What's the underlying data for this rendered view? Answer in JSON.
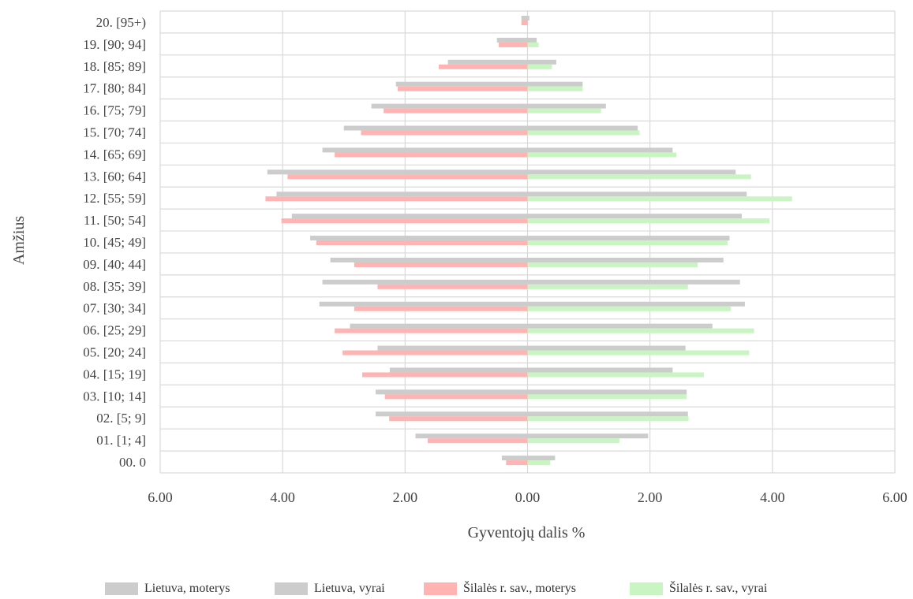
{
  "chart_data": {
    "type": "bar",
    "orientation": "horizontal",
    "xlabel": "Gyventojų dalis %",
    "ylabel": "Amžius",
    "xlim": [
      -6,
      6
    ],
    "xticks": [
      "6.00",
      "4.00",
      "2.00",
      "0.00",
      "2.00",
      "4.00",
      "6.00"
    ],
    "grid": true,
    "legend_position": "bottom",
    "categories": [
      "20. [95+)",
      "19. [90; 94]",
      "18. [85; 89]",
      "17. [80; 84]",
      "16. [75; 79]",
      "15. [70; 74]",
      "14. [65; 69]",
      "13. [60; 64]",
      "12. [55; 59]",
      "11. [50; 54]",
      "10. [45; 49]",
      "09. [40; 44]",
      "08. [35; 39]",
      "07. [30; 34]",
      "06. [25; 29]",
      "05. [20; 24]",
      "04. [15; 19]",
      "03. [10; 14]",
      "02. [5; 9]",
      "01. [1; 4]",
      "00. 0"
    ],
    "series": [
      {
        "name": "Lietuva, moterys",
        "color": "#cccccc",
        "side": "left",
        "values": [
          0.1,
          0.5,
          1.3,
          2.15,
          2.55,
          3.0,
          3.35,
          4.25,
          4.1,
          3.85,
          3.55,
          3.22,
          3.35,
          3.4,
          2.9,
          2.45,
          2.25,
          2.48,
          2.48,
          1.83,
          0.42
        ]
      },
      {
        "name": "Lietuva, vyrai",
        "color": "#cccccc",
        "side": "right",
        "values": [
          0.03,
          0.15,
          0.47,
          0.9,
          1.28,
          1.8,
          2.37,
          3.4,
          3.58,
          3.5,
          3.3,
          3.2,
          3.47,
          3.55,
          3.02,
          2.58,
          2.37,
          2.6,
          2.62,
          1.97,
          0.45
        ]
      },
      {
        "name": "Šilalės r. sav., moterys",
        "color": "#ffb3b3",
        "side": "left",
        "values": [
          0.1,
          0.47,
          1.45,
          2.12,
          2.35,
          2.72,
          3.15,
          3.92,
          4.28,
          4.02,
          3.45,
          2.83,
          2.45,
          2.83,
          3.15,
          3.02,
          2.7,
          2.33,
          2.26,
          1.63,
          0.35
        ]
      },
      {
        "name": "Šilalės r. sav., vyrai",
        "color": "#c8f5c2",
        "side": "right",
        "values": [
          0.0,
          0.18,
          0.4,
          0.9,
          1.2,
          1.83,
          2.43,
          3.65,
          4.32,
          3.95,
          3.27,
          2.78,
          2.62,
          3.32,
          3.7,
          3.62,
          2.88,
          2.6,
          2.63,
          1.5,
          0.37
        ]
      }
    ]
  }
}
